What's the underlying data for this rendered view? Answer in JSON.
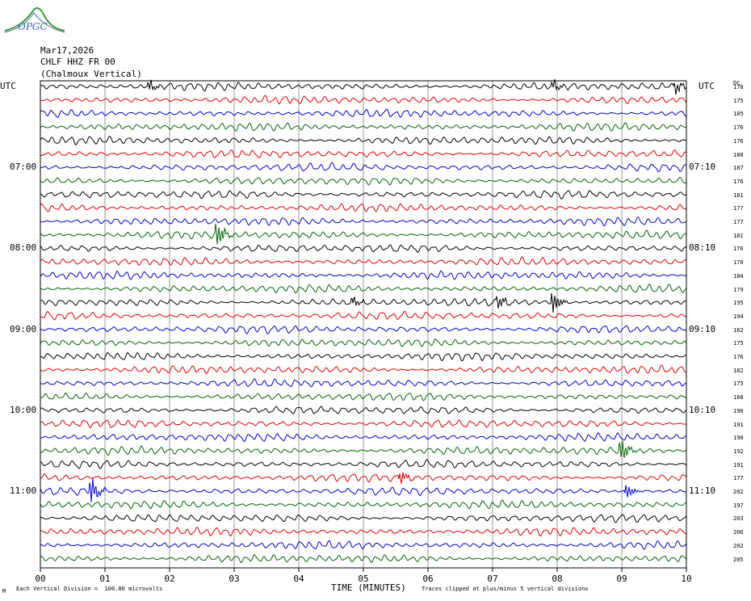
{
  "header": {
    "date": "Mar17,2026",
    "channel": "CHLF HHZ FR 00",
    "station": "(Chalmoux Vertical)",
    "logo_text": "OPGC"
  },
  "axis": {
    "left_unit": "UTC",
    "right_unit": "UTC",
    "dc_label": "DC",
    "xlabel": "TIME (MINUTES)"
  },
  "footer": {
    "mark": "M",
    "scale": "Each Vertical Division =  100.00 microvolts",
    "clip": "Traces clipped at plus/minus 5 vertical divisions"
  },
  "colors": {
    "black": "#000000",
    "red": "#e00000",
    "blue": "#0000d0",
    "green": "#006400",
    "grid": "#7f7f7f"
  },
  "chart_data": {
    "type": "line",
    "title": "CHLF HHZ FR 00 (Chalmoux Vertical)",
    "xlabel": "TIME (MINUTES)",
    "ylabel": "UTC",
    "xlim": [
      0,
      10
    ],
    "x_ticks": [
      "00",
      "01",
      "02",
      "03",
      "04",
      "05",
      "06",
      "07",
      "08",
      "09",
      "10"
    ],
    "trace_count": 36,
    "trace_minutes": 10,
    "trace_color_cycle": [
      "black",
      "red",
      "blue",
      "green"
    ],
    "left_hour_labels": [
      {
        "trace": 0,
        "label": "UTC"
      },
      {
        "trace": 6,
        "label": "07:00"
      },
      {
        "trace": 12,
        "label": "08:00"
      },
      {
        "trace": 18,
        "label": "09:00"
      },
      {
        "trace": 24,
        "label": "10:00"
      },
      {
        "trace": 30,
        "label": "11:00"
      }
    ],
    "right_hour_labels": [
      {
        "trace": 0,
        "label": "UTC"
      },
      {
        "trace": 6,
        "label": "07:10"
      },
      {
        "trace": 12,
        "label": "08:10"
      },
      {
        "trace": 18,
        "label": "09:10"
      },
      {
        "trace": 24,
        "label": "10:10"
      },
      {
        "trace": 30,
        "label": "11:10"
      }
    ],
    "dc_offsets": [
      "178",
      "175",
      "185",
      "176",
      "176",
      "180",
      "187",
      "176",
      "181",
      "177",
      "177",
      "181",
      "176",
      "170",
      "184",
      "179",
      "195",
      "194",
      "162",
      "175",
      "176",
      "182",
      "175",
      "168",
      "190",
      "191",
      "190",
      "192",
      "191",
      "177",
      "202",
      "197",
      "203",
      "206",
      "202",
      "205"
    ],
    "events": [
      {
        "trace": 11,
        "minute": 2.75,
        "amp": 2.0
      },
      {
        "trace": 16,
        "minute": 7.1,
        "amp": 1.0
      },
      {
        "trace": 16,
        "minute": 7.95,
        "amp": 1.6
      },
      {
        "trace": 16,
        "minute": 4.85,
        "amp": 0.8
      },
      {
        "trace": 27,
        "minute": 9.0,
        "amp": 1.8
      },
      {
        "trace": 29,
        "minute": 5.6,
        "amp": 1.0
      },
      {
        "trace": 30,
        "minute": 0.8,
        "amp": 2.0
      },
      {
        "trace": 30,
        "minute": 9.1,
        "amp": 1.0
      },
      {
        "trace": 0,
        "minute": 1.7,
        "amp": 0.8
      },
      {
        "trace": 0,
        "minute": 7.95,
        "amp": 0.8
      },
      {
        "trace": 0,
        "minute": 9.85,
        "amp": 1.0
      }
    ],
    "background_amplitude": 0.45,
    "grid": true
  }
}
